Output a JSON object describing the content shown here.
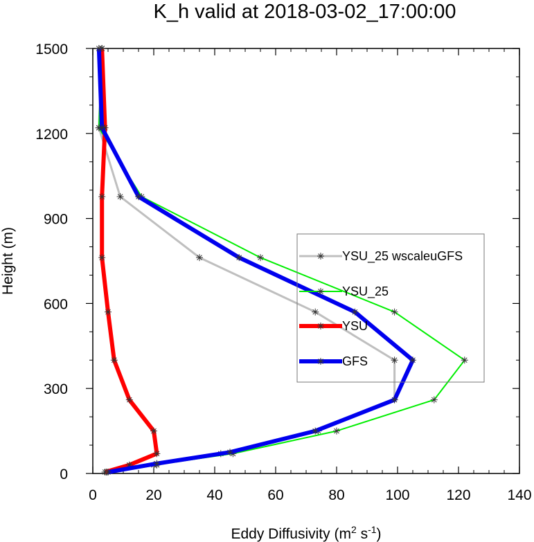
{
  "chart_data": {
    "type": "line",
    "title": "K_h valid at 2018-03-02_17:00:00",
    "xlabel": "Eddy Diffusivity (m",
    "xlabel_sup1": "2",
    "xlabel_mid": " s",
    "xlabel_sup2": "-1",
    "xlabel_end": ")",
    "ylabel": "Height (m)",
    "xlim": [
      0,
      140
    ],
    "ylim": [
      0,
      1500
    ],
    "xticks": [
      0,
      20,
      40,
      60,
      80,
      100,
      120,
      140
    ],
    "yticks": [
      0,
      300,
      600,
      900,
      1200,
      1500
    ],
    "grid": false,
    "legend_position": "center-right",
    "series": [
      {
        "name": "YSU_25 wscaleuGFS",
        "color": "#bfbfbf",
        "width": 3,
        "points": [
          [
            4.5,
            5
          ],
          [
            21,
            30
          ],
          [
            42,
            70
          ],
          [
            74,
            150
          ],
          [
            99,
            260
          ],
          [
            99,
            400
          ],
          [
            73,
            570
          ],
          [
            35,
            762
          ],
          [
            9,
            977
          ],
          [
            2,
            1220
          ],
          [
            3,
            1500
          ]
        ]
      },
      {
        "name": "YSU_25",
        "color": "#00ee00",
        "width": 2,
        "points": [
          [
            4.5,
            5
          ],
          [
            20,
            30
          ],
          [
            46,
            70
          ],
          [
            80,
            150
          ],
          [
            112,
            260
          ],
          [
            122,
            400
          ],
          [
            99,
            570
          ],
          [
            55,
            762
          ],
          [
            16,
            977
          ],
          [
            2,
            1220
          ],
          [
            3,
            1500
          ]
        ]
      },
      {
        "name": "YSU",
        "color": "#ff0000",
        "width": 6,
        "points": [
          [
            4,
            5
          ],
          [
            12,
            30
          ],
          [
            21,
            70
          ],
          [
            20,
            150
          ],
          [
            12,
            260
          ],
          [
            7,
            400
          ],
          [
            5,
            570
          ],
          [
            3,
            762
          ],
          [
            3,
            977
          ],
          [
            4,
            1220
          ],
          [
            3,
            1500
          ]
        ]
      },
      {
        "name": "GFS",
        "color": "#0000ee",
        "width": 6,
        "points": [
          [
            5,
            5
          ],
          [
            21,
            35
          ],
          [
            45,
            75
          ],
          [
            73,
            150
          ],
          [
            99,
            260
          ],
          [
            105,
            400
          ],
          [
            86,
            570
          ],
          [
            48,
            762
          ],
          [
            15,
            977
          ],
          [
            3,
            1220
          ],
          [
            2,
            1500
          ]
        ]
      }
    ]
  }
}
